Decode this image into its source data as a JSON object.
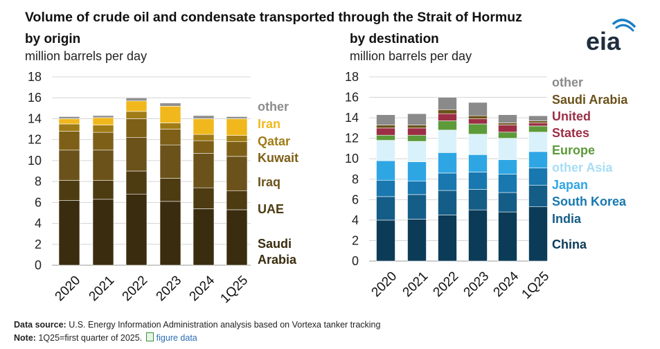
{
  "title": "Volume of crude oil and condensate transported through the Strait of Hormuz",
  "logo_text": "eia",
  "footer": {
    "source_label": "Data source:",
    "source_text": "U.S. Energy Information Administration analysis based on Vortexa tanker tracking",
    "note_label": "Note:",
    "note_text": "1Q25=first quarter of 2025.",
    "link_text": "figure data"
  },
  "chart_data": [
    {
      "type": "bar",
      "stacked": true,
      "subtitle": "by origin",
      "units": "million barrels per day",
      "categories": [
        "2020",
        "2021",
        "2022",
        "2023",
        "2024",
        "1Q25"
      ],
      "ylim": [
        0,
        18
      ],
      "yticks": [
        0,
        2,
        4,
        6,
        8,
        10,
        12,
        14,
        16,
        18
      ],
      "grid": true,
      "legend": "right, labels aligned to bar segments",
      "series": [
        {
          "name": "Saudi Arabia",
          "color": "#3a2c0e",
          "values": [
            6.2,
            6.3,
            6.8,
            6.1,
            5.4,
            5.3
          ]
        },
        {
          "name": "UAE",
          "color": "#4d3b12",
          "values": [
            1.9,
            1.8,
            2.2,
            2.2,
            2.0,
            1.8
          ]
        },
        {
          "name": "Iraq",
          "color": "#6b521a",
          "values": [
            2.9,
            2.9,
            3.2,
            3.2,
            3.3,
            3.3
          ]
        },
        {
          "name": "Kuwait",
          "color": "#7d5f17",
          "values": [
            1.8,
            1.7,
            1.8,
            1.5,
            1.2,
            1.4
          ]
        },
        {
          "name": "Qatar",
          "color": "#a07c16",
          "values": [
            0.7,
            0.7,
            0.7,
            0.6,
            0.6,
            0.6
          ]
        },
        {
          "name": "Iran",
          "color": "#f1b81d",
          "values": [
            0.5,
            0.7,
            1.0,
            1.6,
            1.5,
            1.6
          ]
        },
        {
          "name": "other",
          "color": "#8f8f8f",
          "values": [
            0.2,
            0.2,
            0.3,
            0.3,
            0.3,
            0.2
          ]
        }
      ]
    },
    {
      "type": "bar",
      "stacked": true,
      "subtitle": "by destination",
      "units": "million barrels per day",
      "categories": [
        "2020",
        "2021",
        "2022",
        "2023",
        "2024",
        "1Q25"
      ],
      "ylim": [
        0,
        18
      ],
      "yticks": [
        0,
        2,
        4,
        6,
        8,
        10,
        12,
        14,
        16,
        18
      ],
      "grid": true,
      "legend": "right, labels aligned to bar segments",
      "series": [
        {
          "name": "China",
          "color": "#0c3b57",
          "values": [
            4.0,
            4.1,
            4.5,
            5.0,
            4.8,
            5.3
          ]
        },
        {
          "name": "India",
          "color": "#145d87",
          "values": [
            2.3,
            2.4,
            2.4,
            2.0,
            1.9,
            2.1
          ]
        },
        {
          "name": "South Korea",
          "color": "#1878af",
          "values": [
            1.6,
            1.3,
            1.7,
            1.7,
            1.8,
            1.7
          ]
        },
        {
          "name": "Japan",
          "color": "#2fa6e4",
          "values": [
            1.9,
            1.9,
            2.0,
            1.7,
            1.4,
            1.6
          ]
        },
        {
          "name": "other Asia",
          "color": "#d9f1fb",
          "values": [
            2.0,
            2.0,
            2.2,
            2.0,
            2.1,
            1.9
          ]
        },
        {
          "name": "Europe",
          "color": "#5c9a3a",
          "values": [
            0.5,
            0.6,
            0.9,
            1.0,
            0.6,
            0.6
          ]
        },
        {
          "name": "United States",
          "color": "#9c2f45",
          "values": [
            0.7,
            0.7,
            0.7,
            0.5,
            0.7,
            0.3
          ]
        },
        {
          "name": "Saudi Arabia",
          "color": "#6b521a",
          "values": [
            0.3,
            0.3,
            0.4,
            0.3,
            0.2,
            0.2
          ]
        },
        {
          "name": "other",
          "color": "#8a8a8a",
          "values": [
            1.0,
            1.1,
            1.2,
            1.3,
            0.8,
            0.5
          ]
        }
      ]
    }
  ]
}
